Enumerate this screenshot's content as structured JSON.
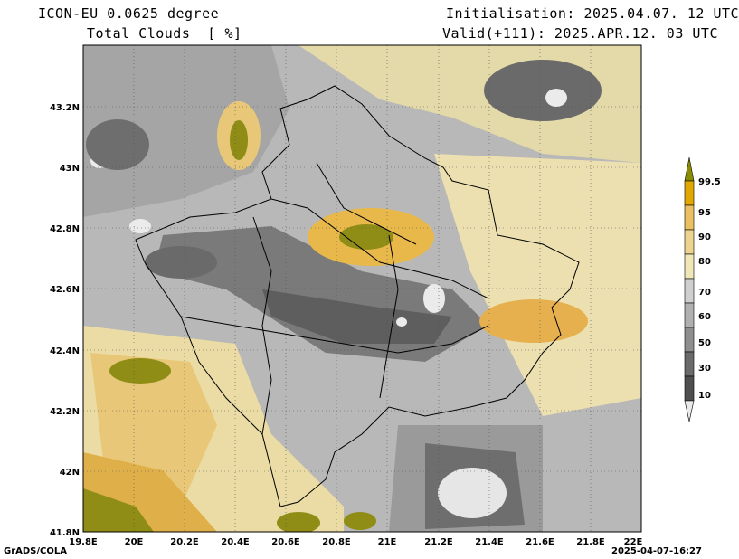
{
  "header": {
    "model": "ICON-EU 0.0625 degree",
    "variable": "Total Clouds  [ %]",
    "initialisation": "Initialisation: 2025.04.07. 12 UTC",
    "valid": "Valid(+111): 2025.APR.12. 03 UTC"
  },
  "map": {
    "x_ticks": [
      "19.8E",
      "20E",
      "20.2E",
      "20.4E",
      "20.6E",
      "20.8E",
      "21E",
      "21.2E",
      "21.4E",
      "21.6E",
      "21.8E",
      "22E"
    ],
    "y_ticks": [
      "43.2N",
      "43N",
      "42.8N",
      "42.6N",
      "42.4N",
      "42.2N",
      "42N",
      "41.8N"
    ],
    "lon_range": [
      19.8,
      22.0
    ],
    "lat_range": [
      41.8,
      43.4
    ]
  },
  "colorbar": {
    "labels": [
      "99.5",
      "95",
      "90",
      "80",
      "70",
      "60",
      "50",
      "30",
      "10"
    ],
    "colors": [
      "#8c8c00",
      "#e0a800",
      "#ebc060",
      "#ecd490",
      "#f0e6b8",
      "#cfcfcf",
      "#b0b0b0",
      "#8f8f8f",
      "#6a6a6a",
      "#eaeaea"
    ]
  },
  "footer": {
    "left": "GrADS/COLA",
    "right": "2025-04-07-16:27"
  }
}
